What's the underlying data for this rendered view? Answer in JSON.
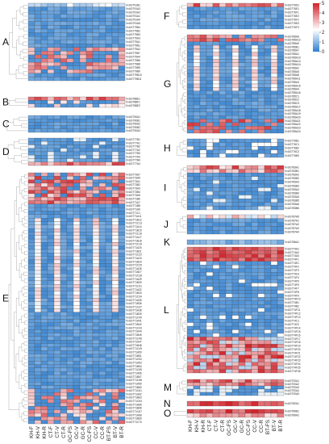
{
  "chart_data": {
    "type": "heatmap",
    "columns": [
      "KH-F",
      "KH-V",
      "KH-R",
      "CT-F",
      "CT-V",
      "CT-R",
      "GC-FS",
      "GC-V",
      "GC-R",
      "CC-FS",
      "CC-V",
      "CC-R",
      "BT-FS",
      "BT-V",
      "BT-R"
    ],
    "colorbar": {
      "ticks": [
        0,
        1,
        2,
        3,
        4,
        5
      ],
      "low_color": "#2f7fd0",
      "mid_color": "#ffffff",
      "high_color": "#d2232a"
    },
    "panels": [
      {
        "label": "A",
        "side": "left",
        "y0": 4,
        "y1": 100,
        "genes": [
          "VvUGT91B1",
          "VvUGT91A3",
          "VvUGT91A2",
          "VvUGT91A1",
          "VvUGT91A4",
          "VvUGT91A5",
          "VvUGT79B4",
          "VvUGT79B2",
          "VvUGT79B3",
          "VvUGT79A3",
          "VvUGT79A1",
          "VvUGT79B1",
          "VvUGT79A2",
          "VvUGT79B7",
          "VvUGT79A4",
          "VvUGT79B6",
          "VvUGT79B8",
          "VvUGT79B5",
          "VvUGT79B9",
          "VvUGT79B10",
          "VvUGT79B11"
        ],
        "pattern": "A"
      },
      {
        "label": "B",
        "side": "left",
        "y0": 120,
        "y1": 133,
        "genes": [
          "VvUGT88E1",
          "VvUGT88F1",
          "VvUGT88E2"
        ],
        "pattern": "B"
      },
      {
        "label": "C",
        "side": "left",
        "y0": 143,
        "y1": 164,
        "genes": [
          "VvUGT90A1",
          "VvUGT90B1",
          "VvUGT90A2",
          "VvUGT90B2",
          "VvUGT90A3"
        ],
        "pattern": "C"
      },
      {
        "label": "D",
        "side": "left",
        "y0": 171,
        "y1": 205,
        "genes": [
          "VvUGT77B1",
          "VvUGT77A1",
          "VvUGT77B2",
          "VvUGT77A2",
          "VvUGT77B3",
          "VvUGT77A3",
          "VvUGT77B4",
          "VvUGT77A4"
        ],
        "pattern": "D"
      },
      {
        "label": "E",
        "side": "left",
        "y0": 214,
        "y1": 525,
        "genes": [
          "VvUGT73A7",
          "VvUGT73A9",
          "VvUGT73A1",
          "VvUGT73B2",
          "VvUGT73A3",
          "VvUGT73B4",
          "VvUGT73A5",
          "VvUGT71B6",
          "VvUGT71A7",
          "VvUGT71B8",
          "VvUGT71A9",
          "VvUGT71C1",
          "VvUGT71A11",
          "VvUGT71B12",
          "VvUGT71C13",
          "VvUGT71A14",
          "VvUGT71B15",
          "VvUGT71C16",
          "VvUGT71A17",
          "VvUGT71B18",
          "VvUGT71C19",
          "VvUGT71A20",
          "VvUGT71B21",
          "VvUGT71C22",
          "VvUGT71A23",
          "VvUGT71B24",
          "VvUGT71C25",
          "VvUGT71A26",
          "VvUGT71B27",
          "VvUGT71C28",
          "VvUGT71A29",
          "VvUGT71B30",
          "VvUGT71C31",
          "VvUGT71A32",
          "VvUGT71B33",
          "VvUGT71C34",
          "VvUGT71A35",
          "VvUGT71B36",
          "VvUGT71C37",
          "VvUGT71A38",
          "VvUGT71B39",
          "VvUGT71C40",
          "VvUGT71A41",
          "VvUGT71B42",
          "VvUGT71C43",
          "VvUGT71A44",
          "VvUGT71B45",
          "VvUGT71C46",
          "VvUGT71A47",
          "VvUGT71B48",
          "VvUGT71C49",
          "VvUGT71A50",
          "VvUGT71B51",
          "VvUGT71C52",
          "VvUGT71A53",
          "VvUGT71B54",
          "VvUGT71C55",
          "VvUGT71A56",
          "VvUGT71B57",
          "VvUGT71C58",
          "VvUGT71A59",
          "VvUGT71B60",
          "VvUGT71C61",
          "VvUGT71A62",
          "VvUGT71B63",
          "VvUGT71C64",
          "VvUGT71A65",
          "VvUGT71B66",
          "VvUGT71C67",
          "VvUGT71A68",
          "VvUGT71B69",
          "VvUGT71C70"
        ],
        "pattern": "E"
      },
      {
        "label": "F",
        "side": "right",
        "y0": 4,
        "y1": 36,
        "genes": [
          "VvUGT76D1",
          "VvUGT76E1",
          "VvUGT76F1",
          "VvUGT76E2",
          "VvUGT76F2",
          "VvUGT76E3",
          "VvUGT76F3"
        ],
        "pattern": "F"
      },
      {
        "label": "G",
        "side": "right",
        "y0": 43,
        "y1": 165,
        "genes": [
          "VvUGT85A6",
          "VvUGT85A12",
          "VvUGT85A9",
          "VvUGT85B1",
          "VvUGT85A7",
          "VvUGT85A1",
          "VvUGT85A10",
          "VvUGT85A13",
          "VvUGT85A14",
          "VvUGT85A2",
          "VvUGT85A5",
          "VvUGT85A8",
          "VvUGT85A11",
          "VvUGT85A3",
          "VvUGT85A15",
          "VvUGT85A4",
          "VvUGT85A16",
          "VvUGT85C1",
          "VvUGT85C2",
          "VvUGT85C3",
          "VvUGT85A17",
          "VvUGT85A18",
          "VvUGT85A19",
          "VvUGT85A20",
          "VvUGT85A21",
          "VvUGT85A22",
          "VvUGT85A23",
          "VvUGT85A24"
        ],
        "pattern": "G"
      },
      {
        "label": "H",
        "side": "right",
        "y0": 172,
        "y1": 195,
        "genes": [
          "VvUGT76B1",
          "VvUGT76C1",
          "VvUGT76B2",
          "VvUGT76C2",
          "VvUGT76B3"
        ],
        "pattern": "H"
      },
      {
        "label": "I",
        "side": "right",
        "y0": 205,
        "y1": 260,
        "genes": [
          "VvUGT83A1",
          "VvUGT83B1",
          "VvUGT83A2",
          "VvUGT83B2",
          "VvUGT83A3",
          "VvUGT83B3",
          "VvUGT83A4",
          "VvUGT83B4",
          "VvUGT83A5",
          "VvUGT83B5",
          "VvUGT83A6",
          "VvUGT83B6"
        ],
        "pattern": "I"
      },
      {
        "label": "J",
        "side": "right",
        "y0": 266,
        "y1": 290,
        "genes": [
          "VvUGT87A5",
          "VvUGT87A1",
          "VvUGT87A2",
          "VvUGT87A3",
          "VvUGT87A4"
        ],
        "pattern": "J"
      },
      {
        "label": "K",
        "side": "right",
        "y0": 297,
        "y1": 303,
        "genes": [
          "VvUGT86A1"
        ],
        "pattern": "K"
      },
      {
        "label": "L",
        "side": "right",
        "y0": 306,
        "y1": 462,
        "genes": [
          "VvUGT74A1",
          "VvUGT74A2",
          "VvUGT74A3",
          "VvUGT74F1",
          "VvUGT74E1",
          "VvUGT74F2",
          "VvUGT74F3",
          "VvUGT74G1",
          "VvUGT74F4",
          "VvUGT74F5",
          "VvUGT74F6",
          "VvUGT74F7",
          "VvUGT74F8",
          "VvUGT74F9",
          "VvUGT74F10",
          "VvUGT74B1",
          "VvUGT74B2",
          "VvUGT74F11",
          "VvUGT74F12",
          "VvUGT74F13",
          "VvUGT74C1",
          "VvUGT74C2",
          "VvUGT74F14",
          "VvUGT74F15",
          "VvUGT74F16",
          "VvUGT74F17",
          "VvUGT74F18",
          "VvUGT74F19",
          "VvUGT74F20",
          "VvUGT74F21",
          "VvUGT74F22",
          "VvUGT74F23",
          "VvUGT74F24",
          "VvUGT74F25",
          "VvUGT74F26"
        ],
        "pattern": "L"
      },
      {
        "label": "M",
        "side": "right",
        "y0": 470,
        "y1": 490,
        "genes": [
          "VvUGT92A1",
          "VvUGT92A2",
          "VvUGT92A3",
          "VvUGT92A4",
          "VvUGT92A5"
        ],
        "pattern": "M"
      },
      {
        "label": "N",
        "side": "right",
        "y0": 497,
        "y1": 503,
        "genes": [
          "VvUGT82A1"
        ],
        "pattern": "N"
      },
      {
        "label": "O",
        "side": "right",
        "y0": 507,
        "y1": 517,
        "genes": [
          "VvUGT89B1",
          "VvUGT89A2"
        ],
        "pattern": "O"
      }
    ]
  }
}
